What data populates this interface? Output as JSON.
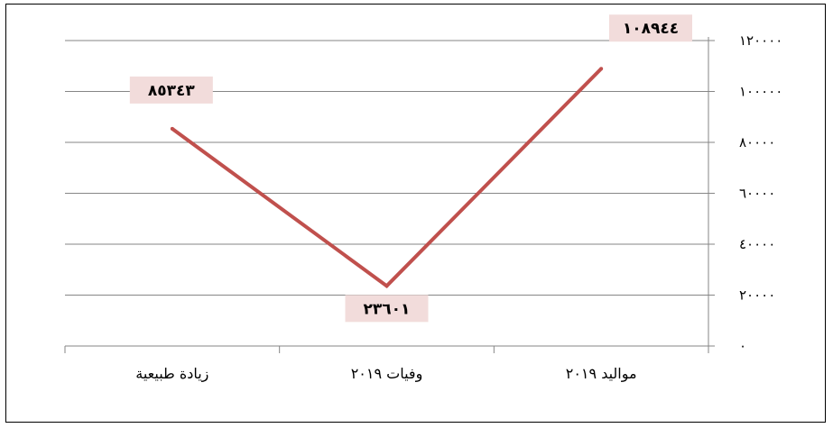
{
  "chart_data": {
    "type": "line",
    "categories": [
      "مواليد ٢٠١٩",
      "وفيات ٢٠١٩",
      "زيادة طبيعية"
    ],
    "series": [
      {
        "values": [
          108944,
          23601,
          85343
        ],
        "labels": [
          "١٠٨٩٤٤",
          "٢٣٦٠١",
          "٨٥٣٤٣"
        ],
        "color": "#C0504D"
      }
    ],
    "ylim": [
      0,
      120000
    ],
    "yticks": [
      0,
      20000,
      40000,
      60000,
      80000,
      100000,
      120000
    ],
    "ytick_labels": [
      "٠",
      "٢٠٠٠٠",
      "٤٠٠٠٠",
      "٦٠٠٠٠",
      "٨٠٠٠٠",
      "١٠٠٠٠٠",
      "١٢٠٠٠٠"
    ],
    "x_direction": "right-to-left",
    "y_axis_side": "right",
    "grid": true,
    "legend": "none",
    "label_box_color": "#F2DCDB",
    "grid_color": "#868686"
  }
}
